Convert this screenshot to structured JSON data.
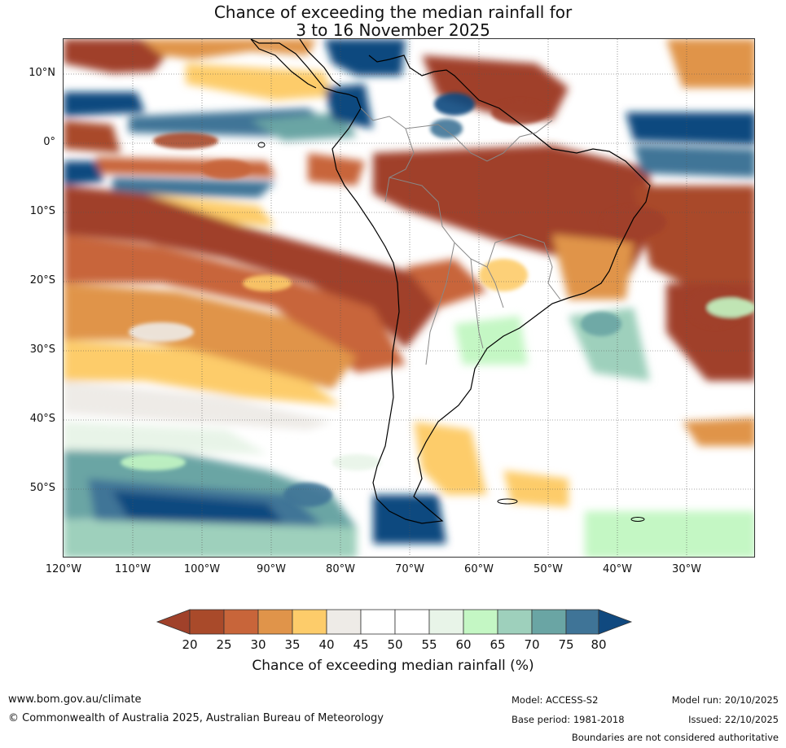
{
  "title": {
    "line1": "Chance of exceeding the median rainfall for",
    "line2": "3 to 16 November 2025"
  },
  "map": {
    "region": "South America",
    "lat_labels": [
      "10°N",
      "0°",
      "10°S",
      "20°S",
      "30°S",
      "40°S",
      "50°S"
    ],
    "lon_labels": [
      "120°W",
      "110°W",
      "100°W",
      "90°W",
      "80°W",
      "70°W",
      "60°W",
      "50°W",
      "40°W",
      "30°W"
    ]
  },
  "colorbar": {
    "label": "Chance of exceeding median rainfall (%)",
    "ticks": [
      "20",
      "25",
      "30",
      "35",
      "40",
      "45",
      "50",
      "55",
      "60",
      "65",
      "70",
      "75",
      "80"
    ],
    "colors": [
      "#a0412a",
      "#a94a2a",
      "#c8653a",
      "#e0944a",
      "#fdcc6a",
      "#eeebe7",
      "#ffffff",
      "#ffffff",
      "#e8f4e8",
      "#c4f7c4",
      "#9ed0bc",
      "#6aa5a4",
      "#3f7497",
      "#10497f"
    ]
  },
  "footer": {
    "url": "www.bom.gov.au/climate",
    "copyright": "© Commonwealth of Australia 2025, Australian Bureau of Meteorology",
    "model": "Model: ACCESS-S2",
    "base_period": "Base period: 1981-2018",
    "model_run": "Model run: 20/10/2025",
    "issued": "Issued: 22/10/2025",
    "disclaimer": "Boundaries are not considered authoritative"
  }
}
